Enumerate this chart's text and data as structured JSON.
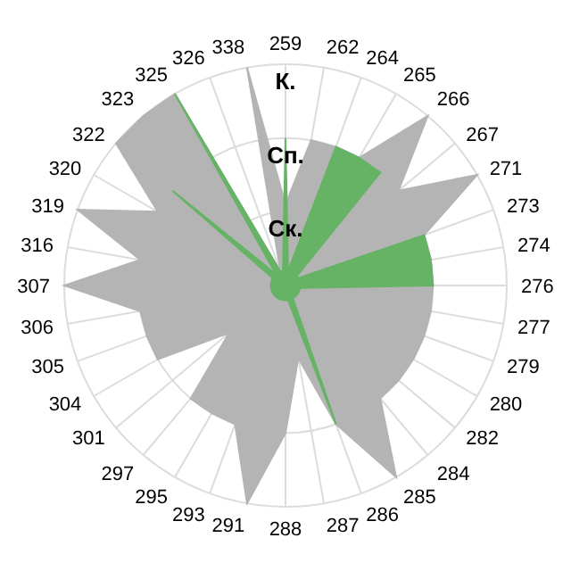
{
  "chart_data": {
    "type": "radar",
    "categories": [
      "259",
      "262",
      "264",
      "265",
      "266",
      "267",
      "271",
      "273",
      "274",
      "276",
      "277",
      "279",
      "280",
      "282",
      "284",
      "285",
      "286",
      "287",
      "288",
      "291",
      "293",
      "295",
      "297",
      "301",
      "304",
      "305",
      "306",
      "307",
      "316",
      "319",
      "320",
      "322",
      "323",
      "325",
      "326",
      "338"
    ],
    "series": [
      {
        "color": "#b4b4b4",
        "values": [
          1.1,
          2,
          2,
          2,
          3,
          2,
          3,
          2,
          2,
          2,
          2,
          2,
          2,
          2,
          2,
          3,
          2,
          1,
          2,
          3,
          2,
          2,
          2,
          1,
          2,
          2,
          2,
          3,
          2,
          3,
          2,
          3,
          3,
          3,
          0.2,
          3
        ]
      },
      {
        "color": "#66b366",
        "values": [
          2,
          0.2,
          2,
          2,
          2,
          0.2,
          0.2,
          2,
          2,
          2,
          0.2,
          0.2,
          0.2,
          0.2,
          0.2,
          0.2,
          2,
          0.2,
          0.2,
          0.2,
          0.2,
          0.2,
          0.2,
          0.2,
          0.2,
          0.2,
          0.2,
          0.2,
          0.2,
          0.2,
          0.2,
          2,
          0.2,
          3,
          0.2,
          0.2
        ]
      }
    ],
    "ylim": [
      0,
      3
    ],
    "yticks": [
      {
        "value": 1,
        "label": "Ск."
      },
      {
        "value": 2,
        "label": "Сп."
      },
      {
        "value": 3,
        "label": "К."
      }
    ],
    "grid": true,
    "legend": false
  }
}
